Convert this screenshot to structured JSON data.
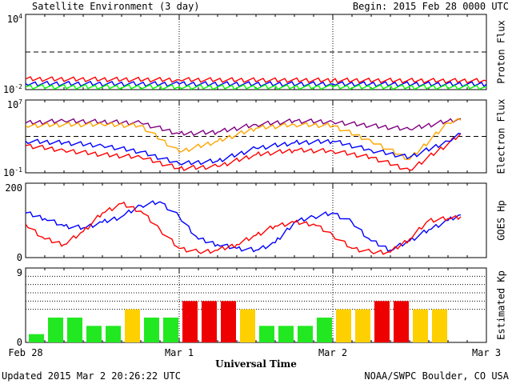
{
  "header": {
    "title": "Satellite Environment (3 day)",
    "begin": "Begin:  2015 Feb 28 0000 UTC"
  },
  "footer": {
    "updated": "Updated 2015 Mar  2 20:26:22 UTC",
    "source": "NOAA/SWPC Boulder, CO USA",
    "xaxis_label": "Universal Time"
  },
  "colors": {
    "red": "#ff0000",
    "blue": "#0000ff",
    "green": "#00ff00",
    "orange": "#ffa500",
    "purple": "#800080",
    "kp_green": "#22e822",
    "kp_yellow": "#ffd000",
    "kp_red": "#ee0000"
  },
  "chart_data": [
    {
      "type": "line",
      "ylabel": "Proton Flux",
      "y_scale": "log",
      "ylim": [
        0.01,
        10000
      ],
      "ytick_labels": [
        "10^4",
        "10^-2"
      ],
      "x": [
        "2015-02-28",
        "2015-03-01",
        "2015-03-02",
        "2015-03-03"
      ],
      "threshold": 10,
      "series": [
        {
          "color": "red",
          "values": [
            0.07,
            0.06,
            0.055,
            0.05
          ]
        },
        {
          "color": "blue",
          "values": [
            0.03,
            0.028,
            0.028,
            0.027
          ]
        },
        {
          "color": "green",
          "values": [
            0.017,
            0.016,
            0.016,
            0.016
          ]
        }
      ]
    },
    {
      "type": "line",
      "ylabel": "Electron Flux",
      "y_scale": "log",
      "ylim": [
        0.1,
        10000000
      ],
      "ytick_labels": [
        "10^7",
        "10^-1"
      ],
      "x": [
        "2015-02-28 00:00",
        "2015-02-28 06:00",
        "2015-02-28 12:00",
        "2015-02-28 18:00",
        "2015-03-01 00:00",
        "2015-03-01 06:00",
        "2015-03-01 12:00",
        "2015-03-01 18:00",
        "2015-03-02 00:00",
        "2015-03-02 06:00",
        "2015-03-02 12:00",
        "2015-03-02 18:00",
        "2015-03-02 20:00"
      ],
      "threshold": 1000,
      "series": [
        {
          "color": "purple",
          "values": [
            30000,
            50000,
            40000,
            30000,
            2000,
            3000,
            20000,
            50000,
            40000,
            15000,
            6000,
            50000,
            90000
          ]
        },
        {
          "color": "orange",
          "values": [
            15000,
            20000,
            20000,
            15000,
            20,
            300,
            8000,
            20000,
            15000,
            300,
            3,
            30000,
            60000
          ]
        },
        {
          "color": "red",
          "values": [
            100,
            30,
            10,
            5,
            0.3,
            0.5,
            10,
            30,
            25,
            5,
            0.2,
            150,
            2000
          ]
        },
        {
          "color": "blue",
          "values": [
            300,
            200,
            100,
            20,
            1,
            2,
            50,
            200,
            300,
            30,
            5,
            300,
            2000
          ]
        }
      ]
    },
    {
      "type": "line",
      "ylabel": "GOES Hp",
      "ylim": [
        0,
        200
      ],
      "yticks": [
        0,
        200
      ],
      "x": [
        "2015-02-28 00:00",
        "2015-02-28 03:00",
        "2015-02-28 06:00",
        "2015-02-28 09:00",
        "2015-02-28 12:00",
        "2015-02-28 15:00",
        "2015-02-28 18:00",
        "2015-02-28 21:00",
        "2015-03-01 00:00",
        "2015-03-01 03:00",
        "2015-03-01 06:00",
        "2015-03-01 09:00",
        "2015-03-01 12:00",
        "2015-03-01 15:00",
        "2015-03-01 18:00",
        "2015-03-01 21:00",
        "2015-03-02 00:00",
        "2015-03-02 03:00",
        "2015-03-02 06:00",
        "2015-03-02 09:00",
        "2015-03-02 12:00",
        "2015-03-02 15:00",
        "2015-03-02 18:00",
        "2015-03-02 20:00"
      ],
      "series": [
        {
          "color": "blue",
          "values": [
            120,
            105,
            85,
            80,
            95,
            110,
            140,
            150,
            110,
            50,
            35,
            25,
            20,
            40,
            95,
            110,
            120,
            95,
            45,
            20,
            45,
            75,
            100,
            115
          ]
        },
        {
          "color": "red",
          "values": [
            90,
            50,
            35,
            70,
            120,
            145,
            125,
            75,
            25,
            15,
            20,
            35,
            60,
            85,
            95,
            90,
            60,
            25,
            15,
            15,
            50,
            100,
            105,
            110
          ]
        }
      ]
    },
    {
      "type": "bar",
      "ylabel": "Estimated Kp",
      "ylim": [
        0,
        9
      ],
      "yticks": [
        0,
        9
      ],
      "xlabel": "Universal Time",
      "xtick_labels": [
        "Feb 28",
        "Mar 1",
        "Mar 2",
        "Mar 3"
      ],
      "values": [
        1,
        3,
        3,
        2,
        2,
        4,
        3,
        3,
        5,
        5,
        5,
        4,
        2,
        2,
        2,
        3,
        4,
        4,
        5,
        5,
        4,
        4
      ],
      "colors": [
        "green",
        "green",
        "green",
        "green",
        "green",
        "yellow",
        "green",
        "green",
        "red",
        "red",
        "red",
        "yellow",
        "green",
        "green",
        "green",
        "green",
        "yellow",
        "yellow",
        "red",
        "red",
        "yellow",
        "yellow"
      ],
      "reference_lines": [
        4,
        5,
        6,
        7,
        8
      ]
    }
  ]
}
